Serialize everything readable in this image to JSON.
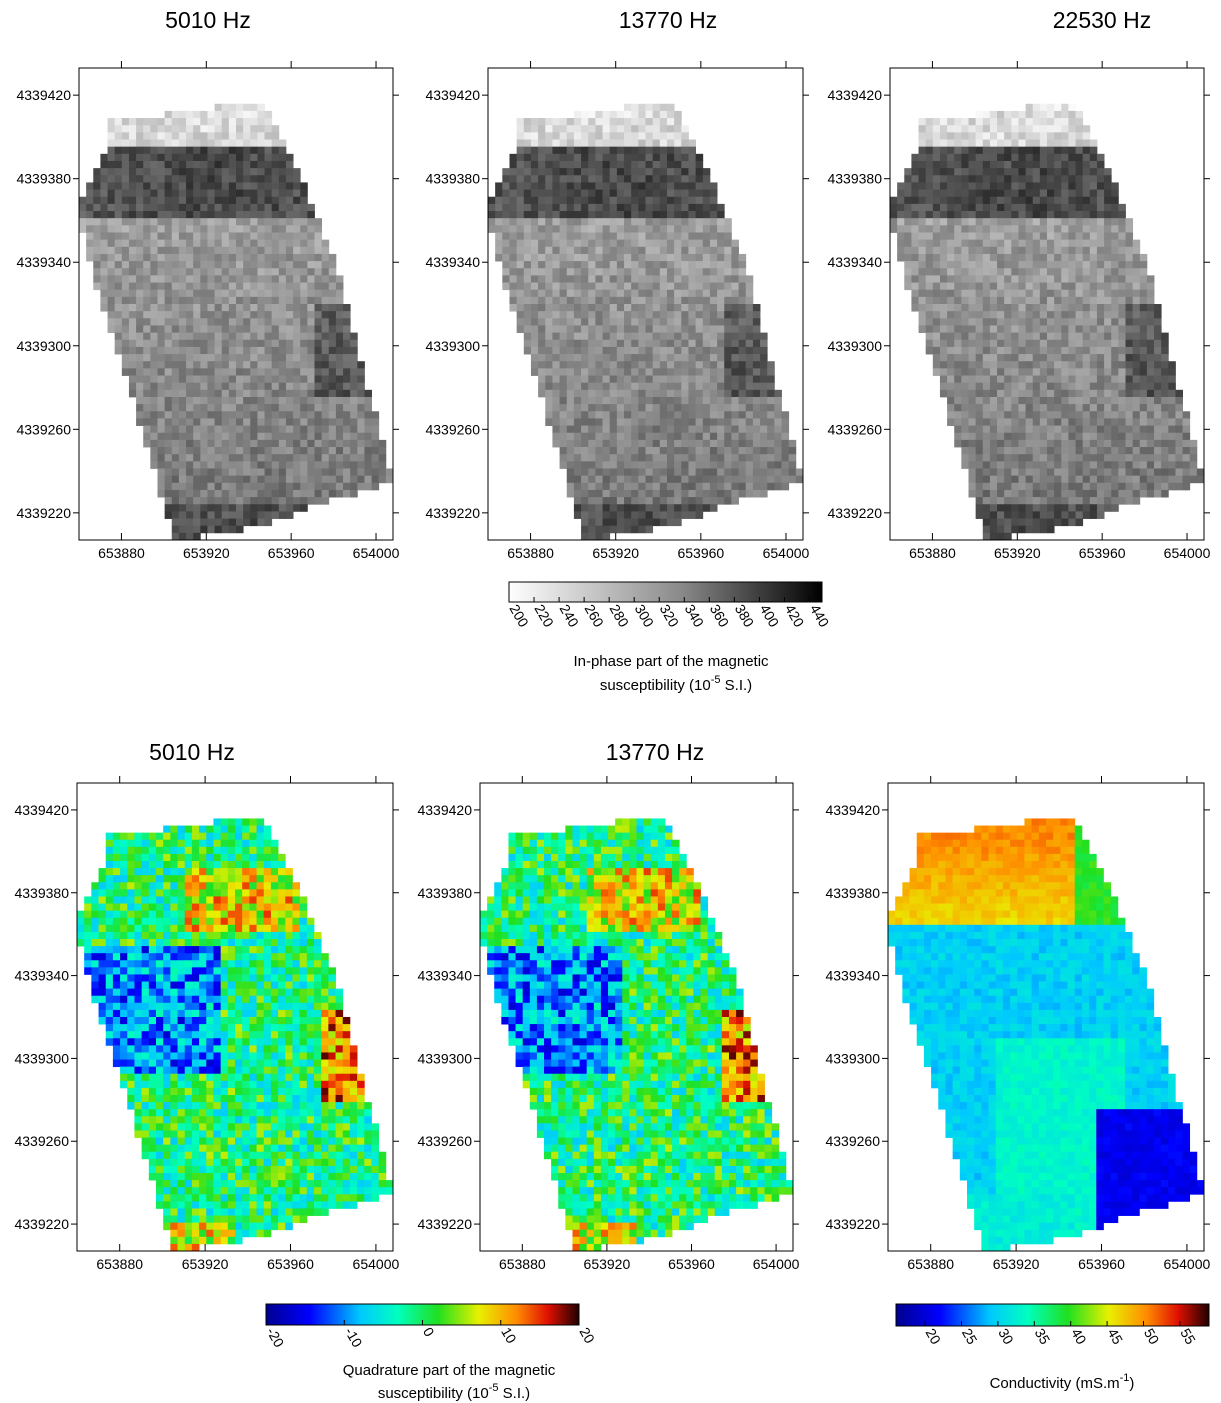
{
  "chart_data": [
    {
      "type": "heatmap",
      "title": "5010 Hz",
      "quantity": "in-phase",
      "colormap": "grayscale",
      "x_ticks": [
        "653880",
        "653920",
        "653960",
        "654000"
      ],
      "y_ticks": [
        "4339420",
        "4339380",
        "4339340",
        "4339300",
        "4339260",
        "4339220"
      ],
      "xlim": [
        653860,
        654008
      ],
      "ylim": [
        4339207,
        4339433
      ]
    },
    {
      "type": "heatmap",
      "title": "13770 Hz",
      "quantity": "in-phase",
      "colormap": "grayscale",
      "x_ticks": [
        "653880",
        "653920",
        "653960",
        "654000"
      ],
      "y_ticks": [
        "4339420",
        "4339380",
        "4339340",
        "4339300",
        "4339260",
        "4339220"
      ],
      "xlim": [
        653860,
        654008
      ],
      "ylim": [
        4339207,
        4339433
      ]
    },
    {
      "type": "heatmap",
      "title": "22530 Hz",
      "quantity": "in-phase",
      "colormap": "grayscale",
      "x_ticks": [
        "653880",
        "653920",
        "653960",
        "654000"
      ],
      "y_ticks": [
        "4339420",
        "4339380",
        "4339340",
        "4339300",
        "4339260",
        "4339220"
      ],
      "xlim": [
        653860,
        654008
      ],
      "ylim": [
        4339207,
        4339433
      ]
    },
    {
      "type": "heatmap",
      "title": "5010 Hz",
      "quantity": "quadrature",
      "colormap": "jet",
      "x_ticks": [
        "653880",
        "653920",
        "653960",
        "654000"
      ],
      "y_ticks": [
        "4339420",
        "4339380",
        "4339340",
        "4339300",
        "4339260",
        "4339220"
      ],
      "xlim": [
        653860,
        654008
      ],
      "ylim": [
        4339207,
        4339433
      ]
    },
    {
      "type": "heatmap",
      "title": "13770 Hz",
      "quantity": "quadrature",
      "colormap": "jet",
      "x_ticks": [
        "653880",
        "653920",
        "653960",
        "654000"
      ],
      "y_ticks": [
        "4339420",
        "4339380",
        "4339340",
        "4339300",
        "4339260",
        "4339220"
      ],
      "xlim": [
        653860,
        654008
      ],
      "ylim": [
        4339207,
        4339433
      ]
    },
    {
      "type": "heatmap",
      "title": "",
      "quantity": "conductivity",
      "colormap": "jet",
      "x_ticks": [
        "653880",
        "653920",
        "653960",
        "654000"
      ],
      "y_ticks": [
        "4339420",
        "4339380",
        "4339340",
        "4339300",
        "4339260",
        "4339220"
      ],
      "xlim": [
        653860,
        654008
      ],
      "ylim": [
        4339207,
        4339433
      ]
    }
  ],
  "colorbars": {
    "inphase": {
      "ticks": [
        "200",
        "220",
        "240",
        "260",
        "280",
        "300",
        "320",
        "340",
        "360",
        "380",
        "400",
        "420",
        "440"
      ],
      "range": [
        200,
        450
      ],
      "colormap": "grayscale",
      "label_line1": "In-phase part of the magnetic",
      "label_line2_pre": "susceptibility (10",
      "label_line2_sup": "-5",
      "label_line2_post": " S.I.)"
    },
    "quadrature": {
      "ticks": [
        "-20",
        "-10",
        "0",
        "10",
        "20"
      ],
      "range": [
        -20,
        20
      ],
      "colormap": "jet",
      "label_line1": "Quadrature part of the magnetic",
      "label_line2_pre": "susceptibility (10",
      "label_line2_sup": "-5",
      "label_line2_post": " S.I.)"
    },
    "conductivity": {
      "ticks": [
        "20",
        "25",
        "30",
        "35",
        "40",
        "45",
        "50",
        "55"
      ],
      "range": [
        16,
        59
      ],
      "colormap": "jet",
      "label_pre": "Conductivity (mS.m",
      "label_sup": "-1",
      "label_post": ")"
    }
  }
}
